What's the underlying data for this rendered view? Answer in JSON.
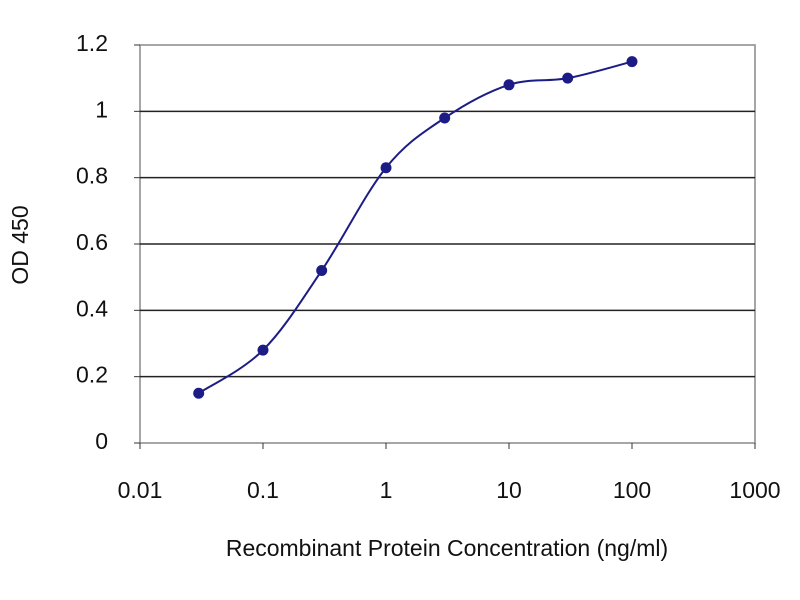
{
  "chart_data": {
    "type": "line",
    "x_label": "Recombinant Protein Concentration (ng/ml)",
    "y_label": "OD 450",
    "x": [
      0.03,
      0.1,
      0.3,
      1,
      3,
      10,
      30,
      100
    ],
    "series": [
      {
        "name": "OD 450",
        "color": "#1c1c86",
        "values": [
          0.15,
          0.28,
          0.52,
          0.83,
          0.98,
          1.08,
          1.1,
          1.15
        ]
      }
    ],
    "xlim": [
      0.01,
      1000
    ],
    "xticks": [
      0.01,
      0.1,
      1,
      10,
      100,
      1000
    ],
    "xlog": true,
    "ylim": [
      0,
      1.2
    ],
    "yticks": [
      0,
      0.2,
      0.4,
      0.6,
      0.8,
      1,
      1.2
    ],
    "grid": true
  }
}
